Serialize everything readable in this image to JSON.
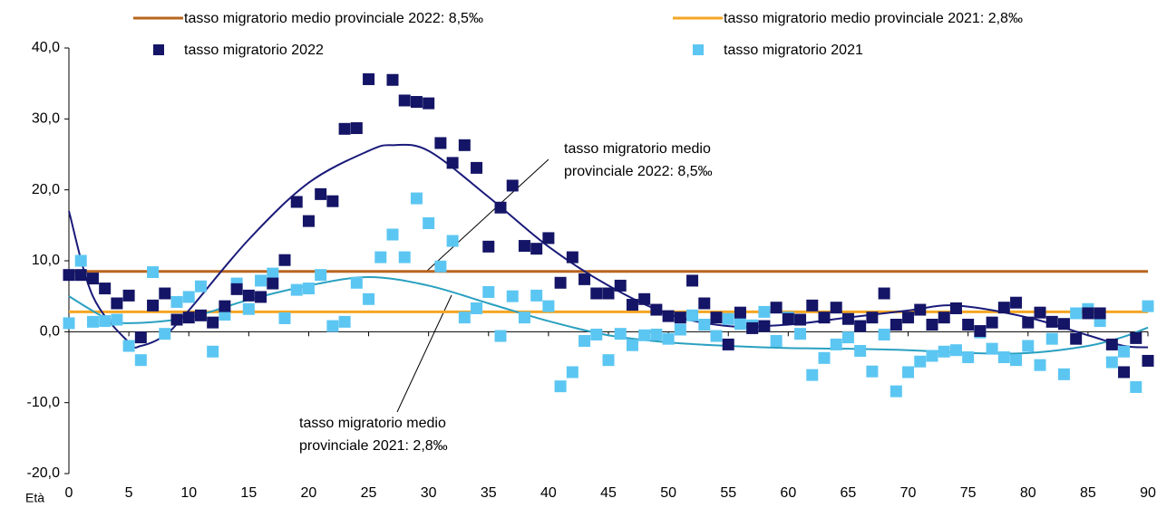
{
  "chart_data": {
    "type": "scatter",
    "x_label": "Età",
    "x": [
      0,
      1,
      2,
      3,
      4,
      5,
      6,
      7,
      8,
      9,
      10,
      11,
      12,
      13,
      14,
      15,
      16,
      17,
      18,
      19,
      20,
      21,
      22,
      23,
      24,
      25,
      26,
      27,
      28,
      29,
      30,
      31,
      32,
      33,
      34,
      35,
      36,
      37,
      38,
      39,
      40,
      41,
      42,
      43,
      44,
      45,
      46,
      47,
      48,
      49,
      50,
      51,
      52,
      53,
      54,
      55,
      56,
      57,
      58,
      59,
      60,
      61,
      62,
      63,
      64,
      65,
      66,
      67,
      68,
      69,
      70,
      71,
      72,
      73,
      74,
      75,
      76,
      77,
      78,
      79,
      80,
      81,
      82,
      83,
      84,
      85,
      86,
      87,
      88,
      89,
      90
    ],
    "xlim": [
      0,
      90
    ],
    "xticks": [
      0,
      5,
      10,
      15,
      20,
      25,
      30,
      35,
      40,
      45,
      50,
      55,
      60,
      65,
      70,
      75,
      80,
      85,
      90
    ],
    "ylim": [
      -20,
      40
    ],
    "yticks": [
      {
        "value": -20,
        "label": "-20,0"
      },
      {
        "value": -10,
        "label": "-10,0"
      },
      {
        "value": 0,
        "label": "0,0"
      },
      {
        "value": 10,
        "label": "10,0"
      },
      {
        "value": 20,
        "label": "20,0"
      },
      {
        "value": 30,
        "label": "30,0"
      },
      {
        "value": 40,
        "label": "40,0"
      }
    ],
    "mean_lines": [
      {
        "name": "tasso migratorio medio provinciale 2022: 8,5‰",
        "color": "#b8651f",
        "value": 8.5
      },
      {
        "name": "tasso migratorio medio provinciale 2021: 2,8‰",
        "color": "#f5a623",
        "value": 2.8
      }
    ],
    "series": [
      {
        "name": "tasso migratorio 2022",
        "color": "#141566",
        "values": [
          8.0,
          8.0,
          7.5,
          6.1,
          4.0,
          5.1,
          -0.8,
          3.7,
          5.4,
          1.7,
          2.0,
          2.3,
          1.3,
          3.6,
          6.0,
          5.1,
          4.9,
          6.8,
          10.1,
          18.3,
          15.6,
          19.4,
          18.4,
          28.6,
          28.7,
          35.6,
          null,
          35.5,
          32.6,
          32.4,
          32.2,
          26.6,
          23.8,
          26.3,
          23.1,
          12.0,
          17.5,
          20.6,
          12.1,
          11.7,
          13.2,
          6.9,
          10.5,
          7.4,
          5.4,
          5.4,
          6.5,
          3.8,
          4.6,
          3.1,
          2.2,
          2.0,
          7.2,
          4.0,
          2.0,
          -1.8,
          2.7,
          0.5,
          0.8,
          3.4,
          1.8,
          1.7,
          3.7,
          2.0,
          3.4,
          1.8,
          0.8,
          2.0,
          5.4,
          1.0,
          2.0,
          3.1,
          1.0,
          2.0,
          3.3,
          1.0,
          0.1,
          1.3,
          3.4,
          4.1,
          1.3,
          2.7,
          1.4,
          1.1,
          -1.0,
          2.6,
          2.6,
          -1.8,
          -5.7,
          -0.9,
          -4.1
        ]
      },
      {
        "name": "tasso migratorio 2021",
        "color": "#5cc6f2",
        "values": [
          1.2,
          10.0,
          1.4,
          1.5,
          1.7,
          -2.0,
          -4.0,
          8.4,
          -0.3,
          4.2,
          4.9,
          6.4,
          -2.8,
          2.4,
          6.8,
          3.2,
          7.2,
          8.2,
          1.9,
          5.9,
          6.1,
          8.0,
          0.8,
          1.4,
          6.9,
          4.6,
          10.5,
          13.7,
          10.5,
          18.8,
          15.3,
          9.2,
          12.8,
          2.0,
          3.3,
          5.6,
          -0.6,
          5.0,
          2.0,
          5.1,
          3.6,
          -7.7,
          -5.7,
          -1.3,
          -0.4,
          -4.0,
          -0.3,
          -1.9,
          -0.5,
          -0.4,
          -1.0,
          0.3,
          2.3,
          1.0,
          -0.6,
          1.8,
          1.1,
          0.9,
          2.8,
          -1.3,
          2.0,
          -0.3,
          -6.1,
          -3.7,
          -1.8,
          -0.8,
          -2.7,
          -5.6,
          -0.4,
          -8.4,
          -5.7,
          -4.2,
          -3.4,
          -2.8,
          -2.6,
          -3.6,
          -0.1,
          -2.4,
          -3.6,
          -4.0,
          -2.0,
          -4.7,
          -1.0,
          -6.0,
          2.6,
          3.2,
          1.5,
          -4.3,
          -2.8,
          -7.8,
          3.6
        ]
      }
    ],
    "trendlines": [
      {
        "color": "#1a1a7a",
        "x": [
          0,
          2,
          5,
          6,
          8,
          10,
          15,
          20,
          25,
          27,
          30,
          35,
          40,
          45,
          50,
          55,
          60,
          65,
          70,
          74,
          80,
          85,
          88,
          90
        ],
        "values": [
          17,
          5,
          -1.5,
          -2,
          -0.5,
          3,
          13,
          21,
          25.5,
          26.3,
          25.5,
          19,
          12,
          6.5,
          2.5,
          0.8,
          1,
          2,
          3,
          3.7,
          2,
          -0.5,
          -2,
          -2.2
        ]
      },
      {
        "color": "#2aa0c0",
        "x": [
          0,
          3,
          5,
          10,
          15,
          20,
          25,
          30,
          35,
          40,
          45,
          50,
          55,
          60,
          65,
          70,
          75,
          80,
          85,
          88,
          90
        ],
        "values": [
          5,
          2,
          1.2,
          2,
          4.5,
          6.5,
          7.7,
          6.5,
          4,
          1.5,
          -0.5,
          -1.5,
          -2,
          -2.3,
          -2.4,
          -2.6,
          -3,
          -3,
          -2,
          -0.7,
          0.6
        ]
      }
    ],
    "annotations": [
      {
        "lines": [
          "tasso migratorio medio",
          "provinciale 2022: 8,5‰"
        ]
      },
      {
        "lines": [
          "tasso migratorio medio",
          "provinciale 2021: 2,8‰"
        ]
      }
    ]
  }
}
